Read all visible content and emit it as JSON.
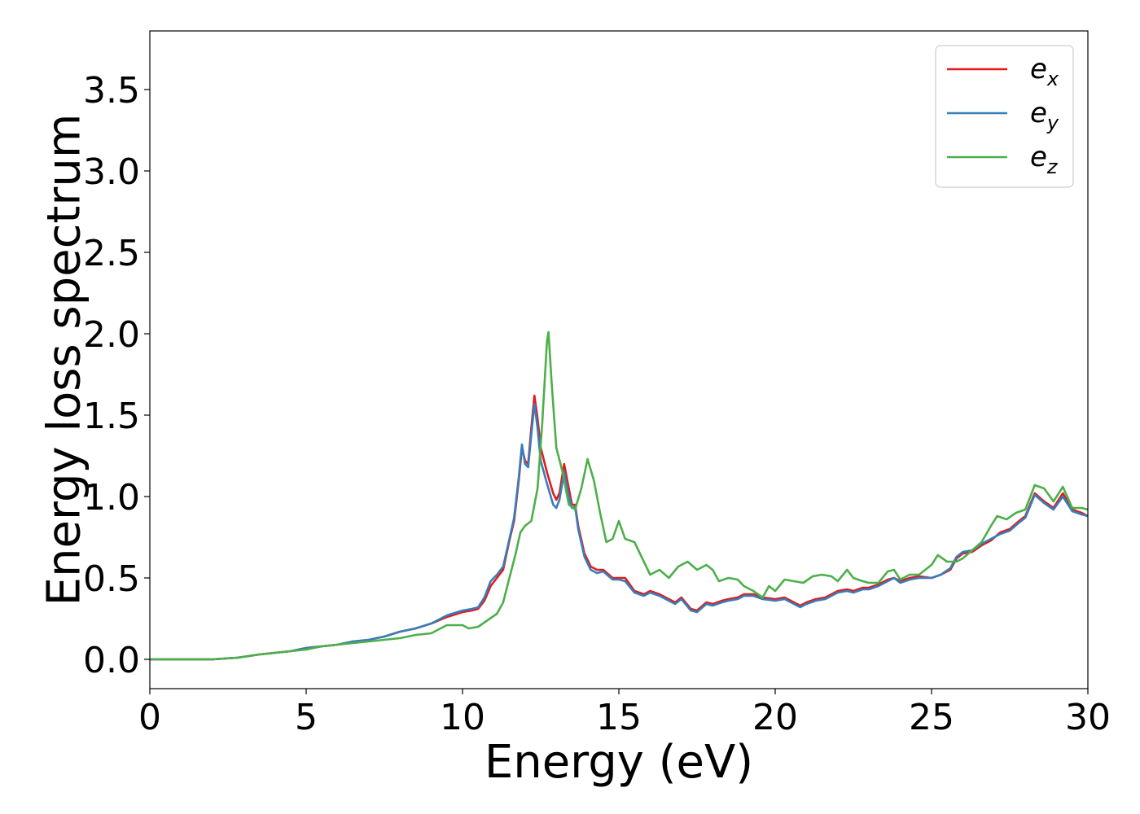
{
  "chart_data": {
    "type": "line",
    "title": "",
    "xlabel": "Energy (eV)",
    "ylabel": "Energy loss spectrum",
    "xlim": [
      0,
      30
    ],
    "ylim": [
      -0.18,
      3.86
    ],
    "x_ticks": [
      "0",
      "5",
      "10",
      "15",
      "20",
      "25",
      "30"
    ],
    "y_ticks": [
      "0.0",
      "0.5",
      "1.0",
      "1.5",
      "2.0",
      "2.5",
      "3.0",
      "3.5"
    ],
    "grid": false,
    "legend_position": "top-right",
    "series": [
      {
        "name": "e_x",
        "legend_main": "e",
        "legend_sub": "x",
        "color": "#e41a1c",
        "points": [
          [
            0,
            0.0
          ],
          [
            2.0,
            0.0
          ],
          [
            2.8,
            0.01
          ],
          [
            3.5,
            0.03
          ],
          [
            4.0,
            0.04
          ],
          [
            4.5,
            0.05
          ],
          [
            5.0,
            0.07
          ],
          [
            5.5,
            0.08
          ],
          [
            6.0,
            0.09
          ],
          [
            6.5,
            0.11
          ],
          [
            7.0,
            0.12
          ],
          [
            7.5,
            0.14
          ],
          [
            8.0,
            0.17
          ],
          [
            8.5,
            0.19
          ],
          [
            9.0,
            0.22
          ],
          [
            9.5,
            0.26
          ],
          [
            10.0,
            0.29
          ],
          [
            10.3,
            0.3
          ],
          [
            10.5,
            0.31
          ],
          [
            10.7,
            0.36
          ],
          [
            10.9,
            0.45
          ],
          [
            11.1,
            0.5
          ],
          [
            11.3,
            0.55
          ],
          [
            11.5,
            0.73
          ],
          [
            11.65,
            0.85
          ],
          [
            11.8,
            1.1
          ],
          [
            11.9,
            1.3
          ],
          [
            12.0,
            1.22
          ],
          [
            12.1,
            1.2
          ],
          [
            12.2,
            1.42
          ],
          [
            12.3,
            1.62
          ],
          [
            12.4,
            1.48
          ],
          [
            12.5,
            1.3
          ],
          [
            12.7,
            1.15
          ],
          [
            12.9,
            1.02
          ],
          [
            13.0,
            0.98
          ],
          [
            13.1,
            1.02
          ],
          [
            13.25,
            1.2
          ],
          [
            13.4,
            1.05
          ],
          [
            13.5,
            0.95
          ],
          [
            13.6,
            0.95
          ],
          [
            13.7,
            0.82
          ],
          [
            13.9,
            0.65
          ],
          [
            14.1,
            0.57
          ],
          [
            14.3,
            0.55
          ],
          [
            14.5,
            0.55
          ],
          [
            14.8,
            0.5
          ],
          [
            15.0,
            0.5
          ],
          [
            15.2,
            0.5
          ],
          [
            15.5,
            0.42
          ],
          [
            15.8,
            0.4
          ],
          [
            16.0,
            0.42
          ],
          [
            16.3,
            0.4
          ],
          [
            16.5,
            0.38
          ],
          [
            16.8,
            0.35
          ],
          [
            17.0,
            0.38
          ],
          [
            17.3,
            0.31
          ],
          [
            17.5,
            0.3
          ],
          [
            17.8,
            0.35
          ],
          [
            18.0,
            0.34
          ],
          [
            18.3,
            0.36
          ],
          [
            18.5,
            0.37
          ],
          [
            18.8,
            0.38
          ],
          [
            19.0,
            0.4
          ],
          [
            19.3,
            0.4
          ],
          [
            19.6,
            0.38
          ],
          [
            20.0,
            0.37
          ],
          [
            20.3,
            0.38
          ],
          [
            20.6,
            0.35
          ],
          [
            20.8,
            0.33
          ],
          [
            21.0,
            0.35
          ],
          [
            21.3,
            0.37
          ],
          [
            21.6,
            0.38
          ],
          [
            21.8,
            0.4
          ],
          [
            22.0,
            0.42
          ],
          [
            22.3,
            0.43
          ],
          [
            22.5,
            0.42
          ],
          [
            22.8,
            0.44
          ],
          [
            23.0,
            0.44
          ],
          [
            23.3,
            0.46
          ],
          [
            23.6,
            0.49
          ],
          [
            23.8,
            0.5
          ],
          [
            24.0,
            0.48
          ],
          [
            24.3,
            0.5
          ],
          [
            24.6,
            0.51
          ],
          [
            25.0,
            0.5
          ],
          [
            25.3,
            0.52
          ],
          [
            25.6,
            0.55
          ],
          [
            25.8,
            0.62
          ],
          [
            26.0,
            0.65
          ],
          [
            26.3,
            0.66
          ],
          [
            26.6,
            0.7
          ],
          [
            26.9,
            0.73
          ],
          [
            27.2,
            0.78
          ],
          [
            27.5,
            0.8
          ],
          [
            27.8,
            0.85
          ],
          [
            28.0,
            0.88
          ],
          [
            28.3,
            1.02
          ],
          [
            28.6,
            0.97
          ],
          [
            28.9,
            0.93
          ],
          [
            29.2,
            1.02
          ],
          [
            29.5,
            0.92
          ],
          [
            29.8,
            0.9
          ],
          [
            30.0,
            0.88
          ]
        ]
      },
      {
        "name": "e_y",
        "legend_main": "e",
        "legend_sub": "y",
        "color": "#377eb8",
        "points": [
          [
            0,
            0.0
          ],
          [
            2.0,
            0.0
          ],
          [
            2.8,
            0.01
          ],
          [
            3.5,
            0.03
          ],
          [
            4.0,
            0.04
          ],
          [
            4.5,
            0.05
          ],
          [
            5.0,
            0.07
          ],
          [
            5.5,
            0.08
          ],
          [
            6.0,
            0.09
          ],
          [
            6.5,
            0.11
          ],
          [
            7.0,
            0.12
          ],
          [
            7.5,
            0.14
          ],
          [
            8.0,
            0.17
          ],
          [
            8.5,
            0.19
          ],
          [
            9.0,
            0.22
          ],
          [
            9.5,
            0.27
          ],
          [
            10.0,
            0.3
          ],
          [
            10.3,
            0.31
          ],
          [
            10.5,
            0.32
          ],
          [
            10.7,
            0.38
          ],
          [
            10.9,
            0.48
          ],
          [
            11.1,
            0.52
          ],
          [
            11.3,
            0.57
          ],
          [
            11.5,
            0.74
          ],
          [
            11.65,
            0.87
          ],
          [
            11.8,
            1.12
          ],
          [
            11.9,
            1.32
          ],
          [
            12.0,
            1.2
          ],
          [
            12.1,
            1.18
          ],
          [
            12.2,
            1.38
          ],
          [
            12.3,
            1.57
          ],
          [
            12.4,
            1.42
          ],
          [
            12.5,
            1.22
          ],
          [
            12.7,
            1.08
          ],
          [
            12.9,
            0.95
          ],
          [
            13.0,
            0.93
          ],
          [
            13.1,
            0.98
          ],
          [
            13.25,
            1.15
          ],
          [
            13.4,
            1.0
          ],
          [
            13.5,
            0.93
          ],
          [
            13.6,
            0.94
          ],
          [
            13.7,
            0.8
          ],
          [
            13.9,
            0.63
          ],
          [
            14.1,
            0.55
          ],
          [
            14.3,
            0.53
          ],
          [
            14.5,
            0.54
          ],
          [
            14.8,
            0.49
          ],
          [
            15.0,
            0.49
          ],
          [
            15.2,
            0.48
          ],
          [
            15.5,
            0.41
          ],
          [
            15.8,
            0.39
          ],
          [
            16.0,
            0.41
          ],
          [
            16.3,
            0.39
          ],
          [
            16.5,
            0.37
          ],
          [
            16.8,
            0.34
          ],
          [
            17.0,
            0.37
          ],
          [
            17.3,
            0.3
          ],
          [
            17.5,
            0.29
          ],
          [
            17.8,
            0.34
          ],
          [
            18.0,
            0.33
          ],
          [
            18.3,
            0.35
          ],
          [
            18.5,
            0.36
          ],
          [
            18.8,
            0.37
          ],
          [
            19.0,
            0.39
          ],
          [
            19.3,
            0.39
          ],
          [
            19.6,
            0.37
          ],
          [
            20.0,
            0.36
          ],
          [
            20.3,
            0.37
          ],
          [
            20.6,
            0.34
          ],
          [
            20.8,
            0.32
          ],
          [
            21.0,
            0.34
          ],
          [
            21.3,
            0.36
          ],
          [
            21.6,
            0.37
          ],
          [
            21.8,
            0.39
          ],
          [
            22.0,
            0.41
          ],
          [
            22.3,
            0.42
          ],
          [
            22.5,
            0.41
          ],
          [
            22.8,
            0.43
          ],
          [
            23.0,
            0.43
          ],
          [
            23.3,
            0.45
          ],
          [
            23.6,
            0.48
          ],
          [
            23.8,
            0.5
          ],
          [
            24.0,
            0.47
          ],
          [
            24.3,
            0.49
          ],
          [
            24.6,
            0.5
          ],
          [
            25.0,
            0.5
          ],
          [
            25.3,
            0.52
          ],
          [
            25.6,
            0.56
          ],
          [
            25.8,
            0.63
          ],
          [
            26.0,
            0.66
          ],
          [
            26.3,
            0.67
          ],
          [
            26.6,
            0.71
          ],
          [
            26.9,
            0.74
          ],
          [
            27.2,
            0.77
          ],
          [
            27.5,
            0.79
          ],
          [
            27.8,
            0.84
          ],
          [
            28.0,
            0.87
          ],
          [
            28.3,
            1.01
          ],
          [
            28.6,
            0.96
          ],
          [
            28.9,
            0.92
          ],
          [
            29.2,
            1.0
          ],
          [
            29.5,
            0.91
          ],
          [
            29.8,
            0.89
          ],
          [
            30.0,
            0.88
          ]
        ]
      },
      {
        "name": "e_z",
        "legend_main": "e",
        "legend_sub": "z",
        "color": "#4daf4a",
        "points": [
          [
            0,
            0.0
          ],
          [
            2.0,
            0.0
          ],
          [
            2.8,
            0.01
          ],
          [
            3.5,
            0.03
          ],
          [
            4.0,
            0.04
          ],
          [
            4.5,
            0.05
          ],
          [
            5.0,
            0.06
          ],
          [
            5.5,
            0.08
          ],
          [
            6.0,
            0.09
          ],
          [
            6.5,
            0.1
          ],
          [
            7.0,
            0.11
          ],
          [
            7.5,
            0.12
          ],
          [
            8.0,
            0.13
          ],
          [
            8.5,
            0.15
          ],
          [
            9.0,
            0.16
          ],
          [
            9.5,
            0.21
          ],
          [
            10.0,
            0.21
          ],
          [
            10.2,
            0.19
          ],
          [
            10.5,
            0.2
          ],
          [
            10.8,
            0.24
          ],
          [
            11.1,
            0.28
          ],
          [
            11.3,
            0.35
          ],
          [
            11.5,
            0.5
          ],
          [
            11.7,
            0.65
          ],
          [
            11.85,
            0.78
          ],
          [
            12.0,
            0.82
          ],
          [
            12.2,
            0.85
          ],
          [
            12.4,
            1.05
          ],
          [
            12.55,
            1.45
          ],
          [
            12.7,
            1.95
          ],
          [
            12.75,
            2.01
          ],
          [
            12.85,
            1.7
          ],
          [
            13.0,
            1.3
          ],
          [
            13.2,
            1.15
          ],
          [
            13.4,
            0.95
          ],
          [
            13.6,
            0.92
          ],
          [
            13.8,
            1.05
          ],
          [
            14.0,
            1.23
          ],
          [
            14.2,
            1.1
          ],
          [
            14.4,
            0.9
          ],
          [
            14.6,
            0.72
          ],
          [
            14.8,
            0.74
          ],
          [
            15.0,
            0.85
          ],
          [
            15.2,
            0.74
          ],
          [
            15.5,
            0.72
          ],
          [
            15.8,
            0.6
          ],
          [
            16.0,
            0.52
          ],
          [
            16.3,
            0.55
          ],
          [
            16.6,
            0.5
          ],
          [
            16.9,
            0.57
          ],
          [
            17.2,
            0.6
          ],
          [
            17.5,
            0.55
          ],
          [
            17.8,
            0.58
          ],
          [
            18.0,
            0.55
          ],
          [
            18.2,
            0.48
          ],
          [
            18.5,
            0.5
          ],
          [
            18.8,
            0.49
          ],
          [
            19.0,
            0.45
          ],
          [
            19.3,
            0.42
          ],
          [
            19.6,
            0.38
          ],
          [
            19.8,
            0.45
          ],
          [
            20.0,
            0.42
          ],
          [
            20.3,
            0.49
          ],
          [
            20.6,
            0.48
          ],
          [
            20.9,
            0.47
          ],
          [
            21.2,
            0.51
          ],
          [
            21.5,
            0.52
          ],
          [
            21.8,
            0.51
          ],
          [
            22.0,
            0.48
          ],
          [
            22.3,
            0.55
          ],
          [
            22.5,
            0.5
          ],
          [
            22.8,
            0.48
          ],
          [
            23.0,
            0.47
          ],
          [
            23.3,
            0.47
          ],
          [
            23.6,
            0.54
          ],
          [
            23.8,
            0.55
          ],
          [
            24.0,
            0.49
          ],
          [
            24.3,
            0.52
          ],
          [
            24.6,
            0.52
          ],
          [
            25.0,
            0.58
          ],
          [
            25.2,
            0.64
          ],
          [
            25.5,
            0.6
          ],
          [
            25.8,
            0.6
          ],
          [
            26.0,
            0.62
          ],
          [
            26.3,
            0.67
          ],
          [
            26.6,
            0.72
          ],
          [
            26.9,
            0.82
          ],
          [
            27.1,
            0.88
          ],
          [
            27.4,
            0.86
          ],
          [
            27.7,
            0.9
          ],
          [
            28.0,
            0.92
          ],
          [
            28.3,
            1.07
          ],
          [
            28.6,
            1.05
          ],
          [
            28.9,
            0.97
          ],
          [
            29.2,
            1.06
          ],
          [
            29.5,
            0.93
          ],
          [
            29.8,
            0.93
          ],
          [
            30.0,
            0.92
          ]
        ]
      }
    ]
  }
}
